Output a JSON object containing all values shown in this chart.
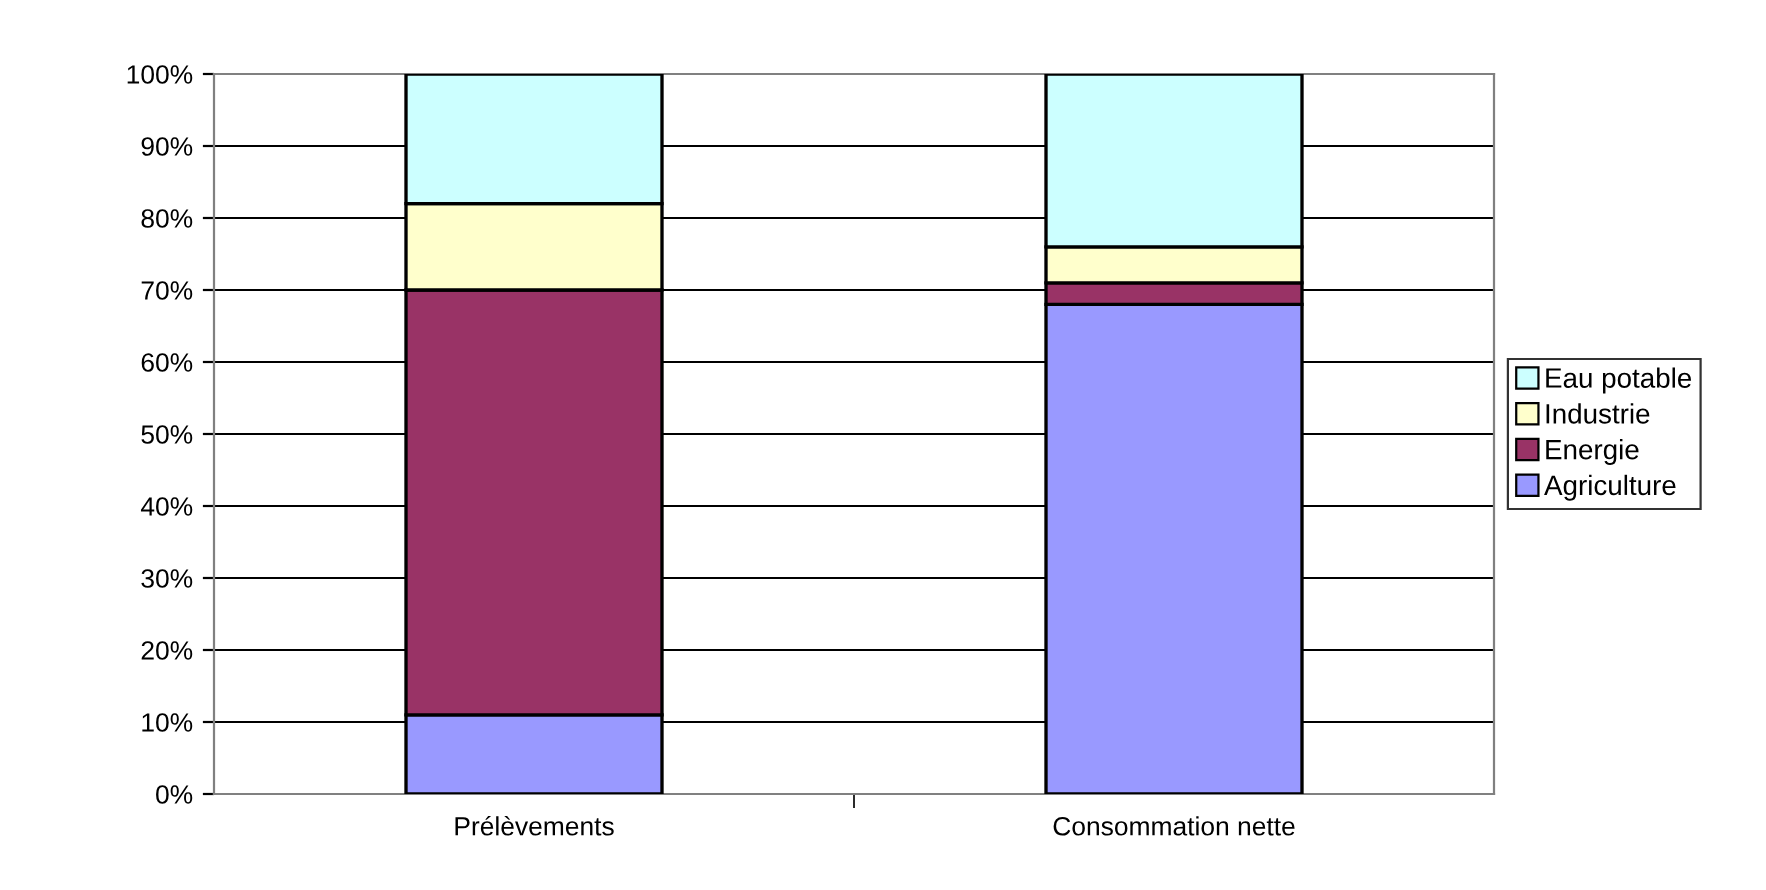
{
  "chart_data": {
    "type": "bar",
    "stacked": true,
    "categories": [
      "Prélèvements",
      "Consommation nette"
    ],
    "series": [
      {
        "name": "Agriculture",
        "color": "#9999ff",
        "values": [
          11,
          68
        ]
      },
      {
        "name": "Energie",
        "color": "#993366",
        "values": [
          59,
          3
        ]
      },
      {
        "name": "Industrie",
        "color": "#ffffcc",
        "values": [
          12,
          5
        ]
      },
      {
        "name": "Eau potable",
        "color": "#ccffff",
        "values": [
          18,
          24
        ]
      }
    ],
    "ylim": [
      0,
      100
    ],
    "yticks": [
      {
        "value": 0,
        "label": "0%"
      },
      {
        "value": 10,
        "label": "10%"
      },
      {
        "value": 20,
        "label": "20%"
      },
      {
        "value": 30,
        "label": "30%"
      },
      {
        "value": 40,
        "label": "40%"
      },
      {
        "value": 50,
        "label": "50%"
      },
      {
        "value": 60,
        "label": "60%"
      },
      {
        "value": 70,
        "label": "70%"
      },
      {
        "value": 80,
        "label": "80%"
      },
      {
        "value": 90,
        "label": "90%"
      },
      {
        "value": 100,
        "label": "100%"
      }
    ],
    "grid": "y",
    "legend": "right"
  }
}
